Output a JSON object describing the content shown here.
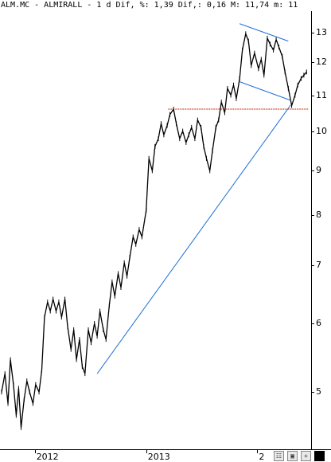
{
  "header": {
    "title": "ALM.MC - ALMIRALL - 1 d Dif, %: 1,39 Dif,: 0,16 M: 11,74 m: 11"
  },
  "colors": {
    "price": "#000000",
    "trendline": "#1f6fd6",
    "resistance": "#cc2200",
    "background": "#ffffff"
  },
  "toolbar": {
    "icons": [
      "chart-settings-icon",
      "save-icon",
      "plus-icon",
      "black-square-icon"
    ]
  },
  "chart_data": {
    "type": "line",
    "title": "ALM.MC - ALMIRALL",
    "xlabel": "",
    "ylabel": "",
    "xlim": [
      "2011-09-15",
      "2014-06-20"
    ],
    "ylim": [
      4.35,
      13.35
    ],
    "y_scale": "log",
    "grid": false,
    "y_axis_position": "right",
    "y_ticks": [
      5,
      6,
      7,
      8,
      9,
      10,
      11,
      12,
      13
    ],
    "x_ticks": [
      {
        "label": "2012",
        "date": "2012-01-02"
      },
      {
        "label": "2013",
        "date": "2013-01-02"
      },
      {
        "label": "2",
        "date": "2014-01-02"
      }
    ],
    "series": [
      {
        "values_note": "",
        "x": [
          "2011-09-15",
          "2011-09-26",
          "2011-10-06",
          "2011-10-14",
          "2011-10-24",
          "2011-11-02",
          "2011-11-10",
          "2011-11-18",
          "2011-11-28",
          "2011-12-07",
          "2011-12-16",
          "2011-12-27",
          "2012-01-05",
          "2012-01-16",
          "2012-01-25",
          "2012-02-03",
          "2012-02-13",
          "2012-02-22",
          "2012-03-02",
          "2012-03-12",
          "2012-03-21",
          "2012-03-30",
          "2012-04-10",
          "2012-04-19",
          "2012-04-30",
          "2012-05-09",
          "2012-05-18",
          "2012-05-28",
          "2012-06-06",
          "2012-06-15",
          "2012-06-26",
          "2012-07-05",
          "2012-07-16",
          "2012-07-25",
          "2012-08-03",
          "2012-08-14",
          "2012-08-23",
          "2012-09-03",
          "2012-09-12",
          "2012-09-21",
          "2012-10-02",
          "2012-10-11",
          "2012-10-22",
          "2012-10-31",
          "2012-11-09",
          "2012-11-20",
          "2012-11-29",
          "2012-12-10",
          "2012-12-19",
          "2013-01-02",
          "2013-01-11",
          "2013-01-22",
          "2013-01-31",
          "2013-02-11",
          "2013-02-20",
          "2013-03-01",
          "2013-03-12",
          "2013-03-21",
          "2013-04-02",
          "2013-04-11",
          "2013-04-22",
          "2013-05-02",
          "2013-05-13",
          "2013-05-22",
          "2013-05-31",
          "2013-06-11",
          "2013-06-20",
          "2013-07-01",
          "2013-07-10",
          "2013-07-19",
          "2013-07-30",
          "2013-08-08",
          "2013-08-19",
          "2013-08-28",
          "2013-09-06",
          "2013-09-17",
          "2013-09-26",
          "2013-10-07",
          "2013-10-16",
          "2013-10-25",
          "2013-11-05",
          "2013-11-14",
          "2013-11-25",
          "2013-12-04",
          "2013-12-13",
          "2013-12-24",
          "2014-01-06",
          "2014-01-15",
          "2014-01-24",
          "2014-02-04",
          "2014-02-13",
          "2014-02-24",
          "2014-03-05",
          "2014-03-14",
          "2014-03-25",
          "2014-04-03",
          "2014-04-14",
          "2014-04-25",
          "2014-05-06",
          "2014-05-15",
          "2014-05-26",
          "2014-06-04",
          "2014-06-13"
        ],
        "y": [
          5.0,
          5.25,
          4.85,
          5.45,
          5.1,
          4.7,
          5.05,
          4.55,
          4.9,
          5.15,
          5.0,
          4.85,
          5.1,
          5.0,
          5.3,
          6.1,
          6.35,
          6.2,
          6.4,
          6.2,
          6.35,
          6.1,
          6.4,
          5.95,
          5.6,
          5.9,
          5.45,
          5.75,
          5.35,
          5.25,
          5.9,
          5.7,
          6.0,
          5.8,
          6.2,
          5.9,
          5.75,
          6.3,
          6.7,
          6.45,
          6.85,
          6.6,
          7.05,
          6.8,
          7.15,
          7.55,
          7.4,
          7.7,
          7.55,
          8.1,
          9.3,
          9.0,
          9.6,
          9.8,
          10.2,
          9.9,
          10.15,
          10.45,
          10.6,
          10.2,
          9.8,
          10.0,
          9.7,
          9.9,
          10.1,
          9.8,
          10.3,
          10.1,
          9.6,
          9.3,
          9.0,
          9.5,
          10.1,
          10.3,
          10.8,
          10.5,
          11.2,
          11.0,
          11.3,
          10.9,
          11.5,
          12.4,
          12.95,
          12.7,
          11.9,
          12.3,
          11.8,
          12.1,
          11.6,
          12.8,
          12.6,
          12.4,
          12.75,
          12.5,
          12.2,
          11.7,
          11.2,
          10.7,
          11.0,
          11.3,
          11.5,
          11.6,
          11.7
        ]
      }
    ],
    "annotations": [
      {
        "kind": "trendline",
        "x": [
          "2012-07-25",
          "2014-04-22"
        ],
        "y": [
          5.25,
          10.72
        ]
      },
      {
        "kind": "trendline",
        "x": [
          "2013-11-05",
          "2014-04-14"
        ],
        "y": [
          13.3,
          12.7
        ]
      },
      {
        "kind": "trendline",
        "x": [
          "2013-11-05",
          "2014-04-22"
        ],
        "y": [
          11.4,
          10.85
        ]
      },
      {
        "kind": "hline",
        "x": [
          "2013-03-15",
          "2014-06-20"
        ],
        "y": [
          10.6,
          10.6
        ]
      }
    ]
  }
}
